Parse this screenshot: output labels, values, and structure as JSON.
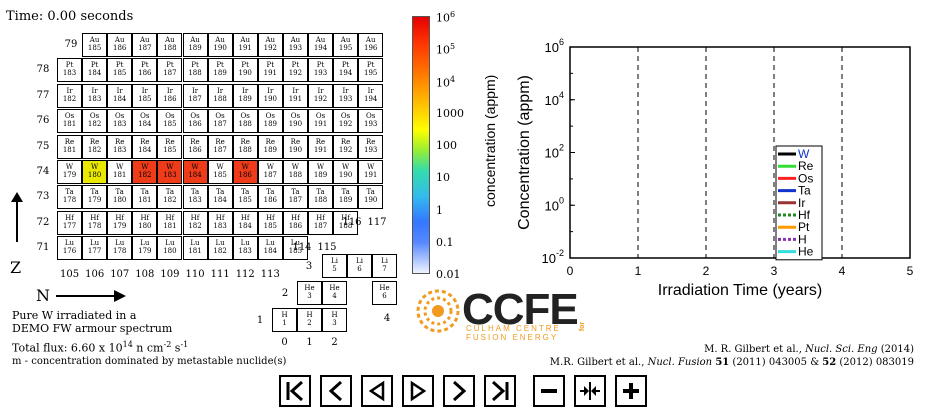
{
  "time_label": "Time: 0.00 seconds",
  "nuclide_chart": {
    "rows": [
      {
        "z": "79",
        "symbol": "Au",
        "masses": [
          "185",
          "186",
          "187",
          "188",
          "189",
          "190",
          "191",
          "192",
          "193",
          "194",
          "195",
          "196"
        ]
      },
      {
        "z": "78",
        "symbol": "Pt",
        "masses": [
          "183",
          "184",
          "185",
          "186",
          "187",
          "188",
          "189",
          "190",
          "191",
          "192",
          "193",
          "194",
          "195"
        ]
      },
      {
        "z": "77",
        "symbol": "Ir",
        "masses": [
          "182",
          "183",
          "184",
          "185",
          "186",
          "187",
          "188",
          "189",
          "190",
          "191",
          "192",
          "193",
          "194"
        ]
      },
      {
        "z": "76",
        "symbol": "Os",
        "masses": [
          "181",
          "182",
          "183",
          "184",
          "185",
          "186",
          "187",
          "188",
          "189",
          "190",
          "191",
          "192",
          "193"
        ]
      },
      {
        "z": "75",
        "symbol": "Re",
        "masses": [
          "181",
          "182",
          "183",
          "184",
          "185",
          "186",
          "187",
          "188",
          "189",
          "190",
          "191",
          "192",
          "193"
        ]
      },
      {
        "z": "74",
        "symbol": "W",
        "masses": [
          "179",
          "180",
          "181",
          "182",
          "183",
          "184",
          "185",
          "186",
          "187",
          "188",
          "189",
          "190",
          "191"
        ]
      },
      {
        "z": "73",
        "symbol": "Ta",
        "masses": [
          "178",
          "179",
          "180",
          "181",
          "182",
          "183",
          "184",
          "185",
          "186",
          "187",
          "188",
          "189",
          "190"
        ]
      },
      {
        "z": "72",
        "symbol": "Hf",
        "masses": [
          "177",
          "178",
          "179",
          "180",
          "181",
          "182",
          "183",
          "184",
          "185",
          "186",
          "187",
          "188"
        ]
      },
      {
        "z": "71",
        "symbol": "Lu",
        "masses": [
          "176",
          "177",
          "178",
          "179",
          "180",
          "181",
          "182",
          "183",
          "184",
          "185"
        ]
      }
    ],
    "highlight_colors": {
      "W-180": "#e8e800",
      "W-182": "#ee3b1a",
      "W-183": "#ee3b1a",
      "W-184": "#ee3b1a",
      "W-186": "#ee3b1a"
    },
    "column_labels": [
      "105",
      "106",
      "107",
      "108",
      "109",
      "110",
      "111",
      "112",
      "113"
    ],
    "trailing_labels": {
      "row72": [
        "116",
        "117"
      ],
      "row71": [
        "114",
        "115"
      ]
    },
    "axis_z": "Z",
    "axis_n": "N"
  },
  "light_chart": {
    "rows": [
      {
        "z": "3",
        "cells": [
          {
            "s": "Li",
            "a": "5"
          },
          {
            "s": "Li",
            "a": "6"
          },
          {
            "s": "Li",
            "a": "7"
          }
        ]
      },
      {
        "z": "2",
        "cells": [
          {
            "s": "He",
            "a": "3"
          },
          {
            "s": "He",
            "a": "4"
          },
          {
            "s": "",
            "a": ""
          },
          {
            "s": "He",
            "a": "6"
          }
        ]
      },
      {
        "z": "1",
        "cells": [
          {
            "s": "H",
            "a": "1"
          },
          {
            "s": "H",
            "a": "2"
          },
          {
            "s": "H",
            "a": "3"
          }
        ]
      }
    ],
    "n_labels": [
      "0",
      "1",
      "2"
    ],
    "extra_label": "4"
  },
  "colorbar": {
    "label": "concentration (appm)",
    "ticks": [
      {
        "base": "10",
        "exp": "6"
      },
      {
        "base": "10",
        "exp": "5"
      },
      {
        "base": "10",
        "exp": "4"
      },
      {
        "base": "1000",
        "exp": ""
      },
      {
        "base": "100",
        "exp": ""
      },
      {
        "base": "10",
        "exp": ""
      },
      {
        "base": "1",
        "exp": ""
      },
      {
        "base": "0.1",
        "exp": ""
      },
      {
        "base": "0.01",
        "exp": ""
      }
    ]
  },
  "description": {
    "line1": "Pure W irradiated in a",
    "line2": "DEMO FW armour spectrum",
    "flux_prefix": "Total flux: 6.60 x 10",
    "flux_exp": "14",
    "flux_unit": " n cm",
    "flux_unit_exp": "-2",
    "flux_s": " s",
    "flux_s_exp": "-1",
    "note": "m - concentration dominated by metastable nuclide(s)"
  },
  "logo": {
    "text": "CCFE",
    "sub1": "CULHAM CENTRE",
    "sub2": "FUSION ENERGY",
    "badge": "for"
  },
  "citations": {
    "line1_a": "M. R. Gilbert et al., ",
    "line1_b": "Nucl. Sci. Eng",
    "line1_c": " (2014)",
    "line2_a": "M.R. Gilbert et al., ",
    "line2_b": "Nucl. Fusion",
    "line2_c": " ",
    "line2_d": "51",
    "line2_e": " (2011) 043005 & ",
    "line2_f": "52",
    "line2_g": " (2012) 083019"
  },
  "chart_data": {
    "type": "line",
    "xlabel": "Irradiation Time (years)",
    "ylabel": "Concentration (appm)",
    "xlim": [
      0,
      5
    ],
    "ylim_log10": [
      -2,
      6
    ],
    "yscale": "log",
    "x_ticks": [
      "0",
      "1",
      "2",
      "3",
      "4",
      "5"
    ],
    "y_ticks": [
      {
        "base": "10",
        "exp": "6"
      },
      {
        "base": "10",
        "exp": "4"
      },
      {
        "base": "10",
        "exp": "2"
      },
      {
        "base": "10",
        "exp": "0"
      },
      {
        "base": "10",
        "exp": "-2"
      }
    ],
    "vertical_dashed_lines_x": [
      1,
      2,
      3,
      4
    ],
    "series": [
      {
        "name": "W",
        "color": "#000000",
        "style": "solid",
        "values": []
      },
      {
        "name": "Re",
        "color": "#33dd33",
        "style": "solid",
        "values": []
      },
      {
        "name": "Os",
        "color": "#ff2222",
        "style": "solid",
        "values": []
      },
      {
        "name": "Ta",
        "color": "#1133cc",
        "style": "solid",
        "values": []
      },
      {
        "name": "Ir",
        "color": "#993333",
        "style": "solid",
        "values": []
      },
      {
        "name": "Hf",
        "color": "#228822",
        "style": "dashed",
        "values": []
      },
      {
        "name": "Pt",
        "color": "#ff9900",
        "style": "solid",
        "values": []
      },
      {
        "name": "H",
        "color": "#8833aa",
        "style": "dashed",
        "values": []
      },
      {
        "name": "He",
        "color": "#33dddd",
        "style": "solid",
        "values": []
      }
    ]
  },
  "controls": {
    "first": "first-frame-icon",
    "prev": "prev-frame-icon",
    "rev": "play-reverse-icon",
    "play": "play-icon",
    "next": "next-frame-icon",
    "last": "last-frame-icon",
    "minus": "zoom-out-icon",
    "reset": "zoom-reset-icon",
    "plus": "zoom-in-icon"
  }
}
